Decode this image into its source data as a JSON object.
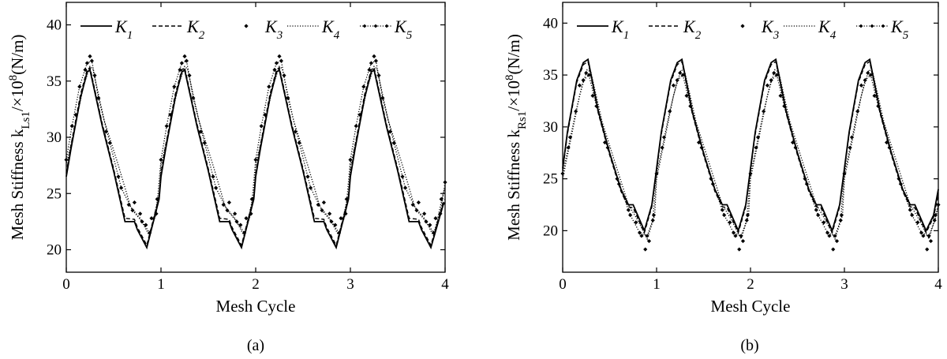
{
  "figure": {
    "captions": [
      "(a)",
      "(b)"
    ]
  },
  "chart_data": [
    {
      "type": "line",
      "panel": "(a)",
      "xlabel": "Mesh Cycle",
      "ylabel": {
        "pre": "Mesh Stiffness k",
        "sub": "Ls1",
        "post": "/×10",
        "sup": "8",
        "unit": "(N/m)"
      },
      "xlim": [
        0,
        4
      ],
      "ylim": [
        18,
        42
      ],
      "xticks": [
        0,
        1,
        2,
        3,
        4
      ],
      "yticks": [
        20,
        25,
        30,
        35,
        40
      ],
      "legend_position": "top",
      "series": [
        {
          "name": "K1",
          "symbol": "K",
          "sub": "1",
          "style": "solid",
          "x": [
            0,
            0.05,
            0.15,
            0.22,
            0.25,
            0.38,
            0.5,
            0.62,
            0.72,
            0.75,
            0.85,
            0.98,
            1.0,
            1.05,
            1.15,
            1.22,
            1.25,
            1.38,
            1.5,
            1.62,
            1.72,
            1.75,
            1.85,
            1.98,
            2.0,
            2.05,
            2.15,
            2.22,
            2.25,
            2.38,
            2.5,
            2.62,
            2.72,
            2.75,
            2.85,
            2.98,
            3.0,
            3.05,
            3.15,
            3.22,
            3.25,
            3.38,
            3.5,
            3.62,
            3.72,
            3.75,
            3.85,
            3.98,
            4.0
          ],
          "y": [
            26.5,
            29,
            33.5,
            35.8,
            36,
            31,
            27,
            22.5,
            22.5,
            21.8,
            20.2,
            24.5,
            26.5,
            29,
            33.5,
            35.8,
            36,
            31,
            27,
            22.5,
            22.5,
            21.8,
            20.2,
            24.5,
            26.5,
            29,
            33.5,
            35.8,
            36,
            31,
            27,
            22.5,
            22.5,
            21.8,
            20.2,
            24.5,
            26.5,
            29,
            33.5,
            35.8,
            36,
            31,
            27,
            22.5,
            22.5,
            21.8,
            20.2,
            24,
            24.2
          ]
        },
        {
          "name": "K2",
          "symbol": "K",
          "sub": "2",
          "style": "dashed",
          "x": [
            0,
            0.05,
            0.15,
            0.22,
            0.25,
            0.38,
            0.5,
            0.62,
            0.72,
            0.75,
            0.85,
            0.98,
            1.0,
            1.05,
            1.15,
            1.22,
            1.25,
            1.38,
            1.5,
            1.62,
            1.72,
            1.75,
            1.85,
            1.98,
            2.0,
            2.05,
            2.15,
            2.22,
            2.25,
            2.38,
            2.5,
            2.62,
            2.72,
            2.75,
            2.85,
            2.98,
            3.0,
            3.05,
            3.15,
            3.22,
            3.25,
            3.38,
            3.5,
            3.62,
            3.72,
            3.75,
            3.85,
            3.98,
            4.0
          ],
          "y": [
            26.8,
            29.3,
            33.8,
            36,
            36.2,
            31.2,
            27.2,
            22.8,
            22.7,
            22,
            20.4,
            24.7,
            26.8,
            29.3,
            33.8,
            36,
            36.2,
            31.2,
            27.2,
            22.8,
            22.7,
            22,
            20.4,
            24.7,
            26.8,
            29.3,
            33.8,
            36,
            36.2,
            31.2,
            27.2,
            22.8,
            22.7,
            22,
            20.4,
            24.7,
            26.8,
            29.3,
            33.8,
            36,
            36.2,
            31.2,
            27.2,
            22.8,
            22.7,
            22,
            20.4,
            24.2,
            24.5
          ]
        },
        {
          "name": "K3",
          "symbol": "K",
          "sub": "3",
          "style": "markers",
          "x": [
            0.1,
            0.2,
            0.25,
            0.3,
            0.42,
            0.55,
            0.66,
            0.72,
            0.78,
            0.84,
            0.9,
            0.96,
            1.1,
            1.2,
            1.25,
            1.3,
            1.42,
            1.55,
            1.66,
            1.72,
            1.78,
            1.84,
            1.9,
            1.96,
            2.1,
            2.2,
            2.25,
            2.3,
            2.42,
            2.55,
            2.66,
            2.72,
            2.78,
            2.84,
            2.9,
            2.96,
            3.1,
            3.2,
            3.25,
            3.3,
            3.42,
            3.55,
            3.66,
            3.72,
            3.78,
            3.84,
            3.9,
            3.96
          ],
          "y": [
            32,
            36,
            37.2,
            35.5,
            30.5,
            26.5,
            24,
            24.2,
            23.2,
            22.2,
            22.8,
            24.5,
            32,
            36,
            37.2,
            35.5,
            30.5,
            26.5,
            24,
            24.2,
            23.2,
            22.2,
            22.8,
            24.5,
            32,
            36,
            37.2,
            35.5,
            30.5,
            26.5,
            24,
            24.2,
            23.2,
            22.2,
            22.8,
            24.5,
            32,
            36,
            37.2,
            35.5,
            30.5,
            26.5,
            24,
            24.2,
            23.2,
            22.2,
            22.8,
            24.5
          ]
        },
        {
          "name": "K4",
          "symbol": "K",
          "sub": "4",
          "style": "dotted",
          "x": [
            0,
            0.08,
            0.18,
            0.25,
            0.28,
            0.4,
            0.55,
            0.68,
            0.78,
            0.88,
            0.98,
            1.0,
            1.08,
            1.18,
            1.25,
            1.28,
            1.4,
            1.55,
            1.68,
            1.78,
            1.88,
            1.98,
            2.0,
            2.08,
            2.18,
            2.25,
            2.28,
            2.4,
            2.55,
            2.68,
            2.78,
            2.88,
            2.98,
            3.0,
            3.08,
            3.18,
            3.25,
            3.28,
            3.4,
            3.55,
            3.68,
            3.78,
            3.88,
            3.98,
            4.0
          ],
          "y": [
            27.5,
            30.5,
            34.5,
            36.3,
            36.1,
            31.5,
            27.5,
            23.8,
            22.8,
            21.2,
            25,
            27.5,
            30.5,
            34.5,
            36.3,
            36.1,
            31.5,
            27.5,
            23.8,
            22.8,
            21.2,
            25,
            27.5,
            30.5,
            34.5,
            36.3,
            36.1,
            31.5,
            27.5,
            23.8,
            22.8,
            21.2,
            25,
            27.5,
            30.5,
            34.5,
            36.3,
            36.1,
            31.5,
            27.5,
            23.8,
            22.8,
            21.2,
            25,
            25.5
          ]
        },
        {
          "name": "K5",
          "symbol": "K",
          "sub": "5",
          "style": "dotted-markers",
          "x": [
            0,
            0.06,
            0.14,
            0.22,
            0.27,
            0.34,
            0.46,
            0.58,
            0.7,
            0.8,
            0.88,
            0.95,
            1.0,
            1.06,
            1.14,
            1.22,
            1.27,
            1.34,
            1.46,
            1.58,
            1.7,
            1.8,
            1.88,
            1.95,
            2.0,
            2.06,
            2.14,
            2.22,
            2.27,
            2.34,
            2.46,
            2.58,
            2.7,
            2.8,
            2.88,
            2.95,
            3.0,
            3.06,
            3.14,
            3.22,
            3.27,
            3.34,
            3.46,
            3.58,
            3.7,
            3.8,
            3.88,
            3.95,
            4.0
          ],
          "y": [
            28,
            31,
            34.5,
            36.6,
            36.8,
            33.5,
            29.5,
            25.5,
            23.5,
            22.5,
            21.5,
            23.2,
            28,
            31,
            34.5,
            36.6,
            36.8,
            33.5,
            29.5,
            25.5,
            23.5,
            22.5,
            21.5,
            23.2,
            28,
            31,
            34.5,
            36.6,
            36.8,
            33.5,
            29.5,
            25.5,
            23.5,
            22.5,
            21.5,
            23.2,
            28,
            31,
            34.5,
            36.6,
            36.8,
            33.5,
            29.5,
            25.5,
            23.5,
            22.5,
            21.5,
            23.2,
            26
          ]
        }
      ]
    },
    {
      "type": "line",
      "panel": "(b)",
      "xlabel": "Mesh Cycle",
      "ylabel": {
        "pre": "Mesh Stiffness k",
        "sub": "Rs1",
        "post": "/×10",
        "sup": "8",
        "unit": "(N/m)"
      },
      "xlim": [
        0,
        4
      ],
      "ylim": [
        16,
        42
      ],
      "xticks": [
        0,
        1,
        2,
        3,
        4
      ],
      "yticks": [
        20,
        25,
        30,
        35,
        40
      ],
      "legend_position": "top",
      "series": [
        {
          "name": "K1",
          "symbol": "K",
          "sub": "1",
          "style": "solid",
          "x": [
            0,
            0.05,
            0.15,
            0.22,
            0.27,
            0.38,
            0.5,
            0.62,
            0.7,
            0.75,
            0.87,
            0.95,
            1.0,
            1.05,
            1.15,
            1.22,
            1.27,
            1.38,
            1.5,
            1.62,
            1.7,
            1.75,
            1.87,
            1.95,
            2.0,
            2.05,
            2.15,
            2.22,
            2.27,
            2.38,
            2.5,
            2.62,
            2.7,
            2.75,
            2.87,
            2.95,
            3.0,
            3.05,
            3.15,
            3.22,
            3.27,
            3.38,
            3.5,
            3.62,
            3.7,
            3.75,
            3.87,
            3.95,
            4.0
          ],
          "y": [
            26,
            29.5,
            34.5,
            36.2,
            36.5,
            31.5,
            27.5,
            24,
            22.5,
            22.5,
            20,
            22.5,
            26,
            29.5,
            34.5,
            36.2,
            36.5,
            31.5,
            27.5,
            24,
            22.5,
            22.5,
            20,
            22.5,
            26,
            29.5,
            34.5,
            36.2,
            36.5,
            31.5,
            27.5,
            24,
            22.5,
            22.5,
            20,
            22.5,
            26,
            29.5,
            34.5,
            36.2,
            36.5,
            31.5,
            27.5,
            24,
            22.5,
            22.5,
            20,
            21.5,
            24
          ]
        },
        {
          "name": "K2",
          "symbol": "K",
          "sub": "2",
          "style": "dashed",
          "x": [
            0,
            0.05,
            0.15,
            0.22,
            0.27,
            0.38,
            0.5,
            0.62,
            0.7,
            0.75,
            0.87,
            0.95,
            1.0,
            1.05,
            1.15,
            1.22,
            1.27,
            1.38,
            1.5,
            1.62,
            1.7,
            1.75,
            1.87,
            1.95,
            2.0,
            2.05,
            2.15,
            2.22,
            2.27,
            2.38,
            2.5,
            2.62,
            2.7,
            2.75,
            2.87,
            2.95,
            3.0,
            3.05,
            3.15,
            3.22,
            3.27,
            3.38,
            3.5,
            3.62,
            3.7,
            3.75,
            3.87,
            3.95,
            4.0
          ],
          "y": [
            25.8,
            29.3,
            34.3,
            36,
            36.3,
            31.3,
            27.3,
            23.8,
            22.3,
            22.2,
            19.8,
            22.3,
            25.8,
            29.3,
            34.3,
            36,
            36.3,
            31.3,
            27.3,
            23.8,
            22.3,
            22.2,
            19.8,
            22.3,
            25.8,
            29.3,
            34.3,
            36,
            36.3,
            31.3,
            27.3,
            23.8,
            22.3,
            22.2,
            19.8,
            22.3,
            25.8,
            29.3,
            34.3,
            36,
            36.3,
            31.3,
            27.3,
            23.8,
            22.3,
            22.2,
            19.8,
            21.3,
            23.5
          ]
        },
        {
          "name": "K3",
          "symbol": "K",
          "sub": "3",
          "style": "markers",
          "x": [
            0.08,
            0.18,
            0.25,
            0.32,
            0.45,
            0.58,
            0.7,
            0.78,
            0.84,
            0.88,
            0.92,
            0.97,
            1.08,
            1.18,
            1.25,
            1.32,
            1.45,
            1.58,
            1.7,
            1.78,
            1.84,
            1.88,
            1.92,
            1.97,
            2.08,
            2.18,
            2.25,
            2.32,
            2.45,
            2.58,
            2.7,
            2.78,
            2.84,
            2.88,
            2.92,
            2.97,
            3.08,
            3.18,
            3.25,
            3.32,
            3.45,
            3.58,
            3.7,
            3.78,
            3.84,
            3.88,
            3.92,
            3.97
          ],
          "y": [
            29,
            34,
            35.2,
            33,
            28.5,
            25,
            22,
            20.8,
            19.5,
            18.2,
            19,
            21.5,
            29,
            34,
            35.2,
            33,
            28.5,
            25,
            22,
            20.8,
            19.5,
            18.2,
            19,
            21.5,
            29,
            34,
            35.2,
            33,
            28.5,
            25,
            22,
            20.8,
            19.5,
            18.2,
            19,
            21.5,
            29,
            34,
            35.2,
            33,
            28.5,
            25,
            22,
            20.8,
            19.5,
            18.2,
            19,
            21.5
          ]
        },
        {
          "name": "K4",
          "symbol": "K",
          "sub": "4",
          "style": "dotted",
          "x": [
            0,
            0.08,
            0.18,
            0.26,
            0.3,
            0.42,
            0.56,
            0.7,
            0.8,
            0.9,
            0.98,
            1.0,
            1.08,
            1.18,
            1.26,
            1.3,
            1.42,
            1.56,
            1.7,
            1.8,
            1.9,
            1.98,
            2.0,
            2.08,
            2.18,
            2.26,
            2.3,
            2.42,
            2.56,
            2.7,
            2.8,
            2.9,
            2.98,
            3.0,
            3.08,
            3.18,
            3.26,
            3.3,
            3.42,
            3.56,
            3.7,
            3.8,
            3.9,
            3.98,
            4.0
          ],
          "y": [
            25,
            28.5,
            33,
            35.5,
            35.3,
            30.5,
            26.5,
            22.5,
            21,
            19.2,
            21.5,
            25,
            28.5,
            33,
            35.5,
            35.3,
            30.5,
            26.5,
            22.5,
            21,
            19.2,
            21.5,
            25,
            28.5,
            33,
            35.5,
            35.3,
            30.5,
            26.5,
            22.5,
            21,
            19.2,
            21.5,
            25,
            28.5,
            33,
            35.5,
            35.3,
            30.5,
            26.5,
            22.5,
            21,
            19.2,
            21.5,
            22.5
          ]
        },
        {
          "name": "K5",
          "symbol": "K",
          "sub": "5",
          "style": "dotted-markers",
          "x": [
            0,
            0.06,
            0.14,
            0.22,
            0.28,
            0.36,
            0.48,
            0.6,
            0.72,
            0.82,
            0.9,
            0.96,
            1.0,
            1.06,
            1.14,
            1.22,
            1.28,
            1.36,
            1.48,
            1.6,
            1.72,
            1.82,
            1.9,
            1.96,
            2.0,
            2.06,
            2.14,
            2.22,
            2.28,
            2.36,
            2.48,
            2.6,
            2.72,
            2.82,
            2.9,
            2.96,
            3.0,
            3.06,
            3.14,
            3.22,
            3.28,
            3.36,
            3.48,
            3.6,
            3.72,
            3.82,
            3.9,
            3.96,
            4.0
          ],
          "y": [
            25.5,
            28,
            31.5,
            34.5,
            35,
            32,
            28,
            24.5,
            21.5,
            19.8,
            19.5,
            21,
            25.5,
            28,
            31.5,
            34.5,
            35,
            32,
            28,
            24.5,
            21.5,
            19.8,
            19.5,
            21,
            25.5,
            28,
            31.5,
            34.5,
            35,
            32,
            28,
            24.5,
            21.5,
            19.8,
            19.5,
            21,
            25.5,
            28,
            31.5,
            34.5,
            35,
            32,
            28,
            24.5,
            21.5,
            19.8,
            19.5,
            21,
            22.5
          ]
        }
      ]
    }
  ]
}
